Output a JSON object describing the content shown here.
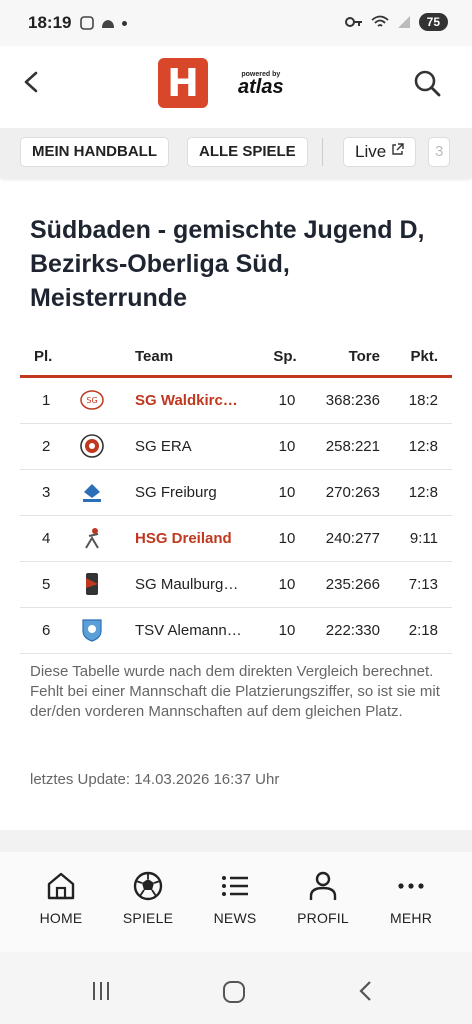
{
  "status_bar": {
    "time": "18:19",
    "battery": "75"
  },
  "header": {
    "logo_letter": "H",
    "powered_by": "powered by",
    "brand": "atlas"
  },
  "tabs": [
    {
      "label": "MEIN HANDBALL"
    },
    {
      "label": "ALLE SPIELE"
    },
    {
      "label": "Live"
    },
    {
      "label": "3"
    }
  ],
  "page_title": "Südbaden - gemischte Jugend D, Bezirks-Oberliga Süd, Meisterrunde",
  "table": {
    "headers": {
      "pl": "Pl.",
      "team": "Team",
      "sp": "Sp.",
      "tore": "Tore",
      "pkt": "Pkt."
    },
    "rows": [
      {
        "pl": "1",
        "team": "SG Waldkirc…",
        "sp": "10",
        "tore": "368:236",
        "pkt": "18:2",
        "highlight": true
      },
      {
        "pl": "2",
        "team": "SG ERA",
        "sp": "10",
        "tore": "258:221",
        "pkt": "12:8",
        "highlight": false
      },
      {
        "pl": "3",
        "team": "SG Freiburg",
        "sp": "10",
        "tore": "270:263",
        "pkt": "12:8",
        "highlight": false
      },
      {
        "pl": "4",
        "team": "HSG Dreiland",
        "sp": "10",
        "tore": "240:277",
        "pkt": "9:11",
        "highlight": true
      },
      {
        "pl": "5",
        "team": "SG Maulburg…",
        "sp": "10",
        "tore": "235:266",
        "pkt": "7:13",
        "highlight": false
      },
      {
        "pl": "6",
        "team": "TSV Alemann…",
        "sp": "10",
        "tore": "222:330",
        "pkt": "2:18",
        "highlight": false
      }
    ]
  },
  "note_line1": "Diese Tabelle wurde nach dem direkten Vergleich berechnet.",
  "note_line2": "Fehlt bei einer Mannschaft die Platzierungsziffer, so ist sie mit der/den vorderen Mannschaften auf dem gleichen Platz.",
  "last_update": "letztes Update: 14.03.2026 16:37 Uhr",
  "bottom_nav": [
    {
      "label": "HOME",
      "icon": "home-icon"
    },
    {
      "label": "SPIELE",
      "icon": "ball-icon"
    },
    {
      "label": "NEWS",
      "icon": "list-icon"
    },
    {
      "label": "PROFIL",
      "icon": "user-icon"
    },
    {
      "label": "MEHR",
      "icon": "more-icon"
    }
  ],
  "colors": {
    "accent": "#c0391f",
    "logo": "#d9472b"
  }
}
